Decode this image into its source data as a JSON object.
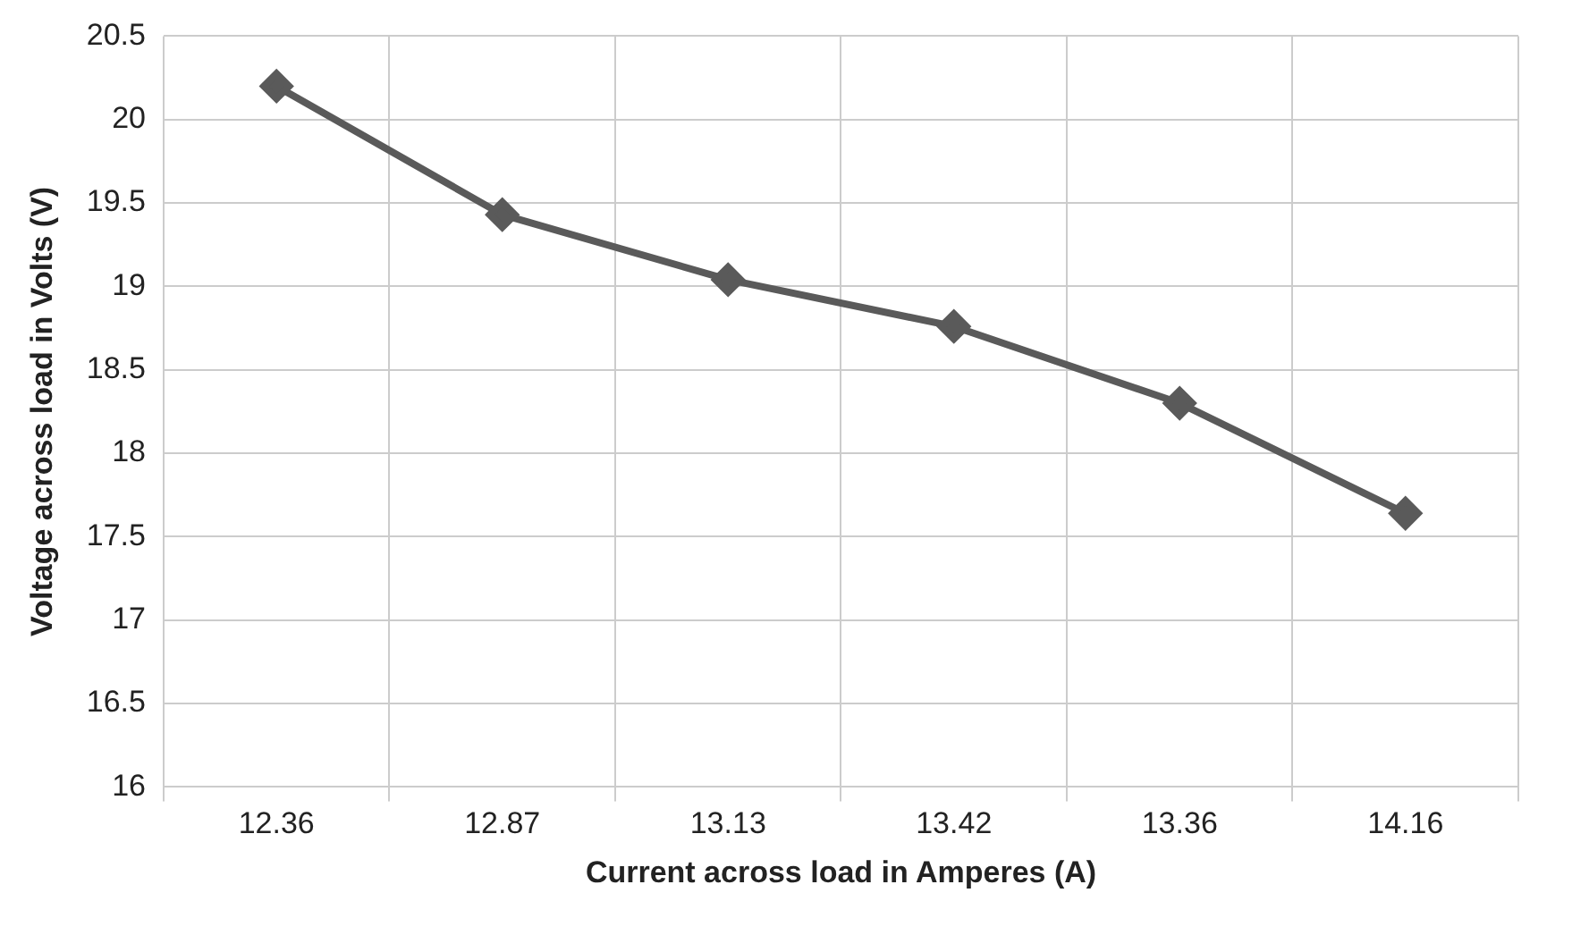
{
  "chart_data": {
    "type": "line",
    "xlabel": "Current across load in Amperes (A)",
    "ylabel": "Voltage across load in Volts (V)",
    "categories": [
      "12.36",
      "12.87",
      "13.13",
      "13.42",
      "13.36",
      "14.16"
    ],
    "series": [
      {
        "color": "#5a5a5a",
        "values": [
          20.2,
          19.43,
          19.04,
          18.76,
          18.3,
          17.64
        ]
      }
    ],
    "ylim": [
      16,
      20.5
    ],
    "yticks": [
      16,
      16.5,
      17,
      17.5,
      18,
      18.5,
      19,
      19.5,
      20,
      20.5
    ],
    "grid": true,
    "legend": false,
    "marker": "diamond",
    "line_style": "solid"
  }
}
